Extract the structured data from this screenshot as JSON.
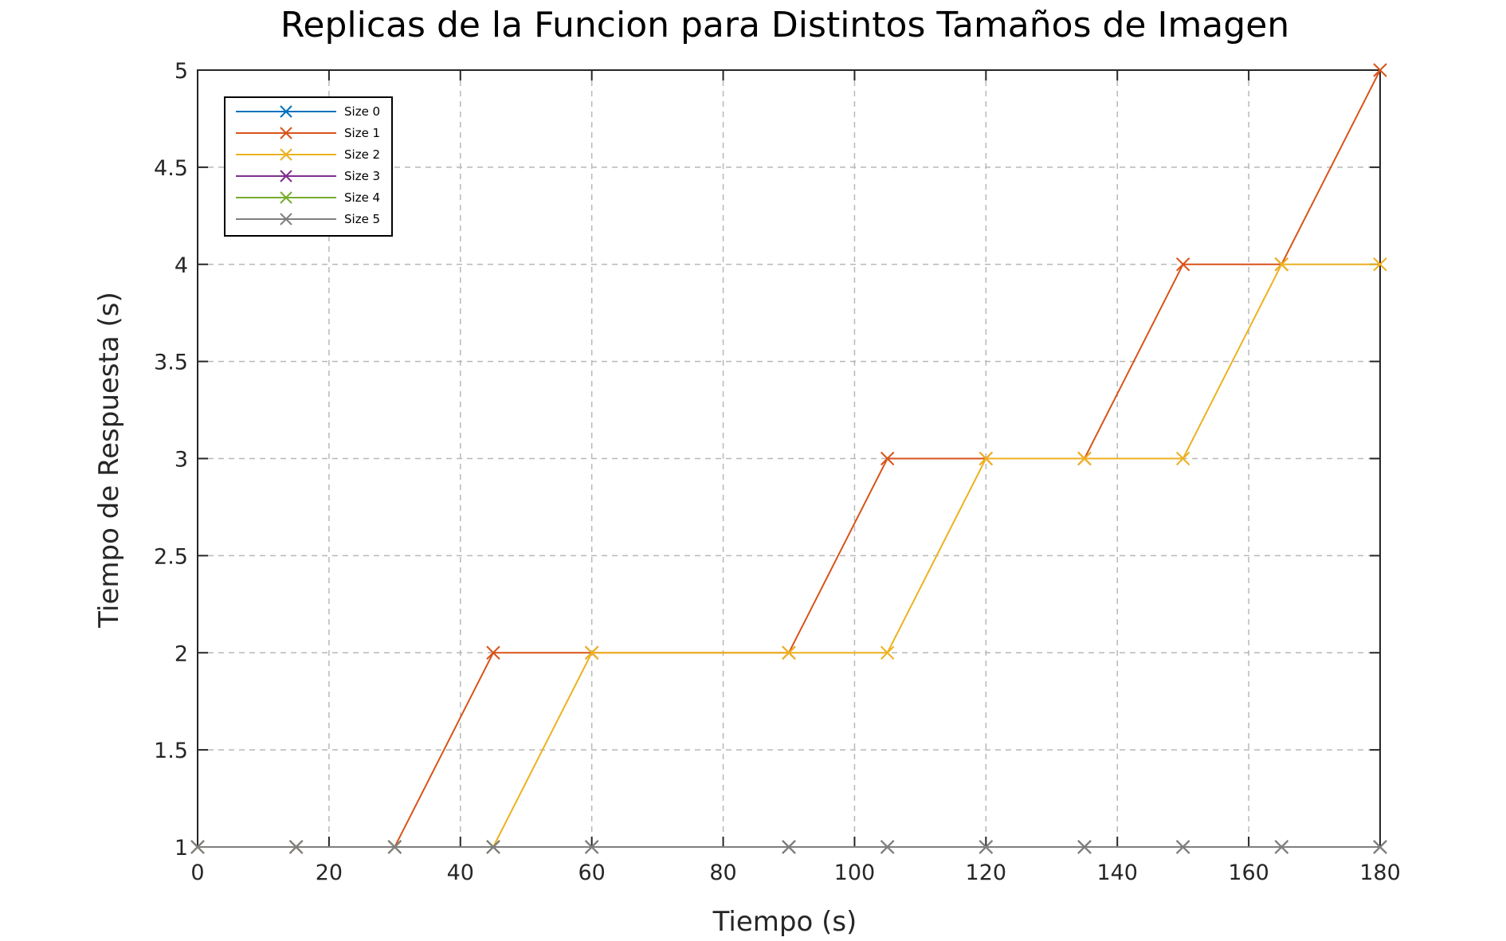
{
  "chart_data": {
    "type": "line",
    "title": "Replicas de la Funcion para Distintos Tamaños de Imagen",
    "xlabel": "Tiempo (s)",
    "ylabel": "Tiempo de Respuesta (s)",
    "xlim": [
      0,
      180
    ],
    "ylim": [
      1,
      5
    ],
    "xticks": [
      0,
      20,
      40,
      60,
      80,
      100,
      120,
      140,
      160,
      180
    ],
    "yticks": [
      1,
      1.5,
      2,
      2.5,
      3,
      3.5,
      4,
      4.5,
      5
    ],
    "grid": true,
    "legend_position": "top-left",
    "marker": "x",
    "series": [
      {
        "name": "Size 0",
        "color": "#0072BD",
        "x": [
          0,
          15,
          30,
          45,
          60,
          90,
          105,
          120,
          135,
          150,
          165,
          180
        ],
        "y": [
          1,
          1,
          1,
          1,
          1,
          1,
          1,
          1,
          1,
          1,
          1,
          1
        ]
      },
      {
        "name": "Size 1",
        "color": "#D95319",
        "x": [
          0,
          15,
          30,
          45,
          60,
          90,
          105,
          120,
          135,
          150,
          165,
          180
        ],
        "y": [
          1,
          1,
          1,
          2,
          2,
          2,
          3,
          3,
          3,
          4,
          4,
          5
        ]
      },
      {
        "name": "Size 2",
        "color": "#EDB120",
        "x": [
          0,
          15,
          30,
          45,
          60,
          90,
          105,
          120,
          135,
          150,
          165,
          180
        ],
        "y": [
          1,
          1,
          1,
          1,
          2,
          2,
          2,
          3,
          3,
          3,
          4,
          4
        ]
      },
      {
        "name": "Size 3",
        "color": "#7E2F8E",
        "x": [
          0,
          15,
          30,
          45,
          60,
          90,
          105,
          120,
          135,
          150,
          165,
          180
        ],
        "y": [
          1,
          1,
          1,
          1,
          1,
          1,
          1,
          1,
          1,
          1,
          1,
          1
        ]
      },
      {
        "name": "Size 4",
        "color": "#77AC30",
        "x": [
          0,
          15,
          30,
          45,
          60,
          90,
          105,
          120,
          135,
          150,
          165,
          180
        ],
        "y": [
          1,
          1,
          1,
          1,
          1,
          1,
          1,
          1,
          1,
          1,
          1,
          1
        ]
      },
      {
        "name": "Size 5",
        "color": "#7F7F7F",
        "x": [
          0,
          15,
          30,
          45,
          60,
          90,
          105,
          120,
          135,
          150,
          165,
          180
        ],
        "y": [
          1,
          1,
          1,
          1,
          1,
          1,
          1,
          1,
          1,
          1,
          1,
          1
        ]
      }
    ]
  }
}
